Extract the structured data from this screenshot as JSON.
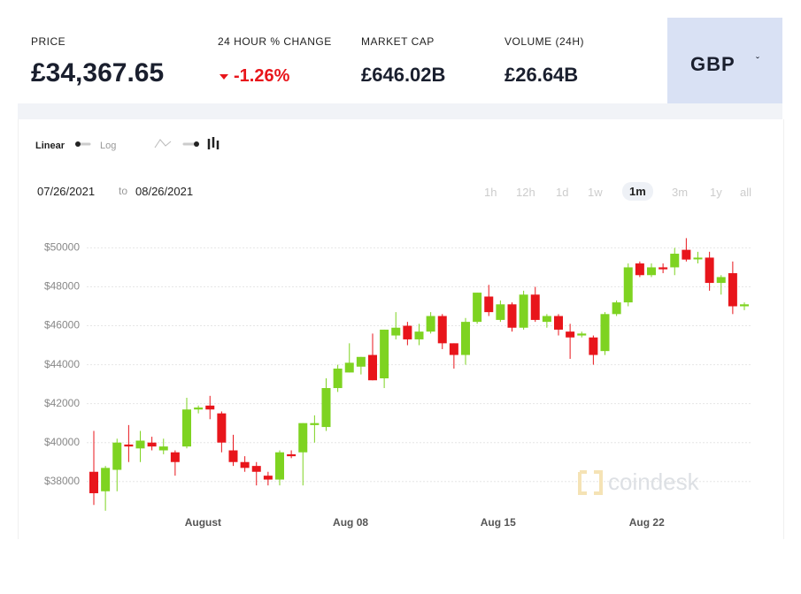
{
  "header": {
    "stats": [
      {
        "label": "PRICE",
        "value": "£34,367.65"
      },
      {
        "label": "24 HOUR % CHANGE",
        "value": "-1.26%"
      },
      {
        "label": "MARKET CAP",
        "value": "£646.02B"
      },
      {
        "label": "VOLUME (24H)",
        "value": "£26.64B"
      }
    ],
    "currency": "GBP"
  },
  "controls": {
    "scale": [
      "Linear",
      "Log"
    ],
    "date_from": "07/26/2021",
    "date_sep": "to",
    "date_to": "08/26/2021",
    "ranges": [
      "1h",
      "12h",
      "1d",
      "1w",
      "1m",
      "3m",
      "1y",
      "all"
    ],
    "active_range": "1m"
  },
  "watermark": "coindesk",
  "chart_data": {
    "type": "candlestick",
    "categories": [
      null,
      null,
      null,
      null,
      null,
      null,
      null,
      null,
      null,
      null,
      null,
      null,
      null,
      null,
      null,
      null,
      null,
      null,
      null,
      null,
      null,
      null,
      null,
      null,
      null,
      null,
      null,
      null,
      null,
      null,
      null,
      null,
      null,
      null,
      null,
      null,
      null,
      null,
      null,
      null,
      null,
      null,
      null,
      null,
      null,
      null,
      null,
      null,
      null,
      null,
      null,
      null,
      null,
      null,
      null,
      null,
      null
    ],
    "open": [
      38500,
      37500,
      38600,
      39900,
      39700,
      40000,
      39600,
      39500,
      39800,
      41700,
      41900,
      41500,
      39600,
      39000,
      38800,
      38300,
      38100,
      39400,
      39500,
      40900,
      40800,
      42800,
      43600,
      43900,
      44500,
      43300,
      45500,
      46000,
      45300,
      45700,
      46500,
      45100,
      44500,
      46200,
      47500,
      46300,
      47100,
      45900,
      47600,
      46200,
      46500,
      45700,
      45500,
      45400,
      44700,
      46600,
      47200,
      49200,
      48600,
      49000,
      49000,
      49900,
      49500,
      49500,
      48200,
      48700,
      47000
    ],
    "high": [
      40600,
      38800,
      40200,
      40900,
      40600,
      40300,
      40200,
      39600,
      42300,
      41900,
      42400,
      41600,
      40400,
      39300,
      39000,
      38500,
      39600,
      39600,
      41000,
      41400,
      43300,
      44000,
      45100,
      44400,
      45600,
      45800,
      46700,
      46200,
      46100,
      46700,
      46600,
      45100,
      46400,
      47700,
      48100,
      47300,
      47200,
      47800,
      48000,
      46600,
      46600,
      46100,
      45700,
      45500,
      46700,
      47300,
      49200,
      49300,
      49200,
      49200,
      50000,
      50500,
      49800,
      49800,
      48600,
      49300,
      47200
    ],
    "low": [
      36800,
      36500,
      37500,
      39000,
      39000,
      39600,
      39400,
      38300,
      39700,
      41500,
      41200,
      39500,
      38800,
      38500,
      37800,
      37800,
      37800,
      39200,
      37800,
      40000,
      40600,
      42600,
      43600,
      43500,
      43200,
      42800,
      45300,
      45000,
      45000,
      45600,
      44800,
      43800,
      44000,
      46100,
      46500,
      46200,
      45700,
      45800,
      46200,
      45900,
      45500,
      44300,
      45400,
      44000,
      44500,
      46500,
      47000,
      48500,
      48500,
      48700,
      48600,
      49300,
      49200,
      47800,
      47600,
      46600,
      46800
    ],
    "close": [
      37400,
      38700,
      40000,
      39800,
      40100,
      39800,
      39800,
      39000,
      41700,
      41800,
      41700,
      40000,
      39000,
      38700,
      38500,
      38100,
      39500,
      39300,
      41000,
      41000,
      42800,
      43800,
      44100,
      44400,
      43200,
      45800,
      45900,
      45300,
      45700,
      46500,
      45100,
      44500,
      46200,
      47700,
      46700,
      47100,
      45900,
      47600,
      46300,
      46500,
      45800,
      45400,
      45600,
      44500,
      46600,
      47200,
      49000,
      48600,
      49000,
      48900,
      49700,
      49400,
      49500,
      48200,
      48500,
      47000,
      47100
    ],
    "up_color": "#7ed321",
    "down_color": "#e8151b",
    "ylim": [
      36400,
      50700
    ],
    "yticks": [
      {
        "value": 38000,
        "label": "$38000"
      },
      {
        "value": 40000,
        "label": "$40000"
      },
      {
        "value": 42000,
        "label": "$42000"
      },
      {
        "value": 44000,
        "label": "$44000"
      },
      {
        "value": 46000,
        "label": "$46000"
      },
      {
        "value": 48000,
        "label": "$48000"
      },
      {
        "value": 50000,
        "label": "$50000"
      }
    ],
    "xticks": [
      {
        "value": 9.4,
        "label": "August"
      },
      {
        "value": 22.1,
        "label": "Aug 08"
      },
      {
        "value": 34.8,
        "label": "Aug 15"
      },
      {
        "value": 47.6,
        "label": "Aug 22"
      }
    ],
    "grid": true
  }
}
